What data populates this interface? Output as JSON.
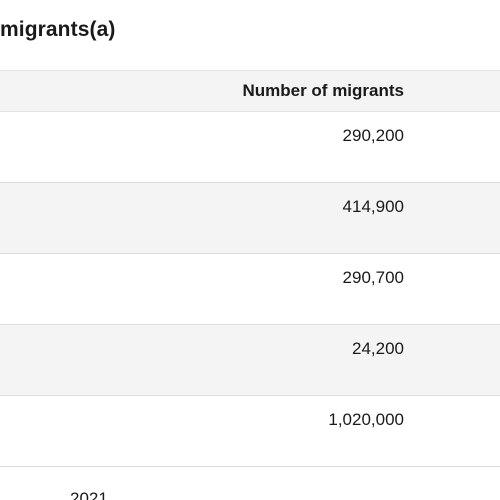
{
  "table": {
    "title": "migrants(a)",
    "column_header": "Number of migrants",
    "rows": [
      {
        "value": "290,200"
      },
      {
        "value": "414,900"
      },
      {
        "value": "290,700"
      },
      {
        "value": "24,200"
      },
      {
        "value": "1,020,000"
      }
    ]
  },
  "footnote": {
    "text": "2021"
  }
}
